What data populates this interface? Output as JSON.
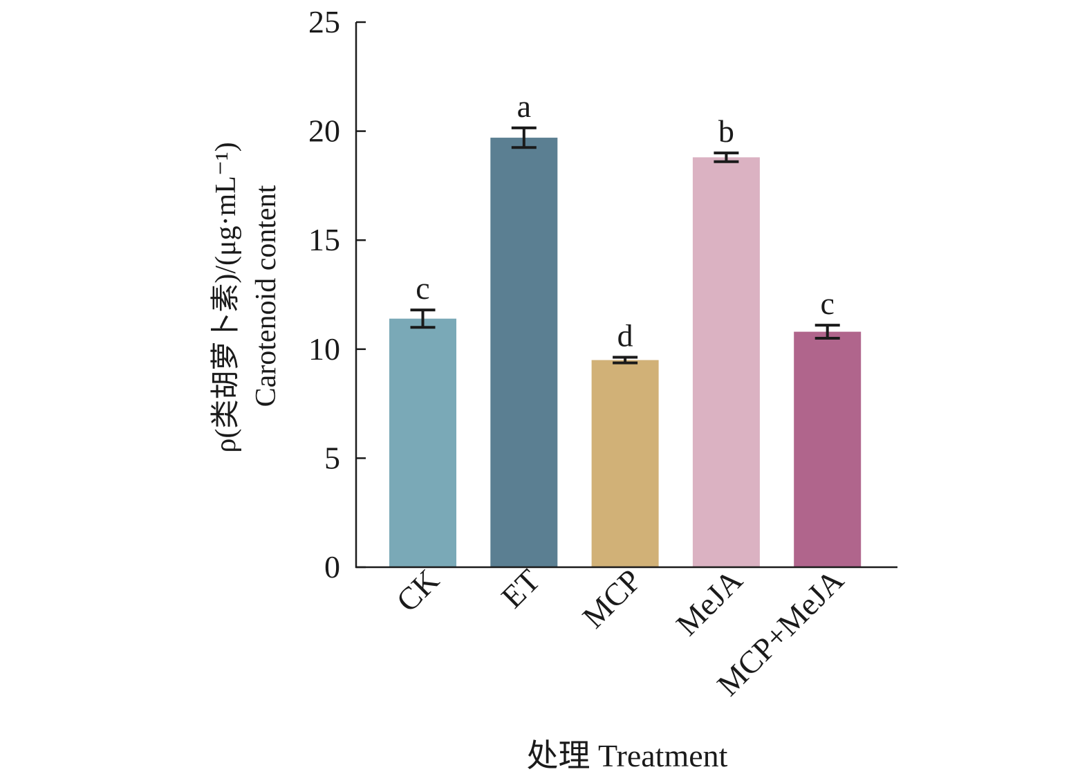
{
  "chart_data": {
    "type": "bar",
    "title": "",
    "xlabel": "处理 Treatment",
    "ylabel_line1": "ρ(类胡萝卜素)/(μg·mL⁻¹)",
    "ylabel_line2": "Carotenoid content",
    "ylim": [
      0,
      25
    ],
    "yticks": [
      0,
      5,
      10,
      15,
      20,
      25
    ],
    "ytick_labels": [
      "0",
      "5",
      "10",
      "15",
      "20",
      "25"
    ],
    "grid": false,
    "categories": [
      "CK",
      "ET",
      "MCP",
      "MeJA",
      "MCP+MeJA"
    ],
    "values": [
      11.4,
      19.7,
      9.5,
      18.8,
      10.8
    ],
    "errors": [
      0.4,
      0.45,
      0.13,
      0.2,
      0.3
    ],
    "significance_letters": [
      "c",
      "a",
      "d",
      "b",
      "c"
    ],
    "colors": [
      "#7aa9b7",
      "#5b7f92",
      "#d1b177",
      "#dbb2c2",
      "#b0658c"
    ]
  }
}
